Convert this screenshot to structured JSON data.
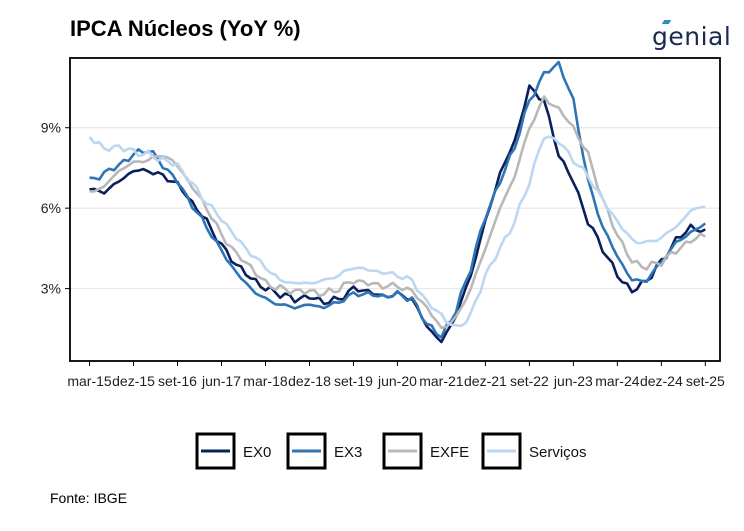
{
  "header": {
    "title": "IPCA Núcleos (YoY %)",
    "brand": "genial"
  },
  "footer": {
    "source": "Fonte: IBGE"
  },
  "chart_data": {
    "type": "line",
    "title": "IPCA Núcleos (YoY %)",
    "xlabel": "",
    "ylabel": "",
    "x_start": "2015-03",
    "x_end": "2025-09",
    "xlim": [
      "2014-11",
      "2025-12"
    ],
    "ylim": [
      0.3,
      11.6
    ],
    "y_ticks": [
      3,
      6,
      9
    ],
    "y_tick_labels": [
      "3%",
      "6%",
      "9%"
    ],
    "x_ticks": [
      "2015-03",
      "2015-12",
      "2016-09",
      "2017-06",
      "2018-03",
      "2018-12",
      "2019-09",
      "2020-06",
      "2021-03",
      "2021-12",
      "2022-09",
      "2023-06",
      "2024-03",
      "2024-12",
      "2025-09"
    ],
    "x_tick_labels": [
      "mar-15",
      "dez-15",
      "set-16",
      "jun-17",
      "mar-18",
      "dez-18",
      "set-19",
      "jun-20",
      "mar-21",
      "dez-21",
      "set-22",
      "jun-23",
      "mar-24",
      "dez-24",
      "set-25"
    ],
    "grid": "horizontal",
    "legend_position": "bottom",
    "series": [
      {
        "name": "EX0",
        "color": "#0b1f5c",
        "keyframes": [
          [
            0,
            6.7
          ],
          [
            3,
            6.6
          ],
          [
            6,
            7.0
          ],
          [
            9,
            7.4
          ],
          [
            12,
            7.4
          ],
          [
            15,
            7.2
          ],
          [
            18,
            6.9
          ],
          [
            21,
            6.2
          ],
          [
            24,
            5.5
          ],
          [
            27,
            4.6
          ],
          [
            30,
            3.9
          ],
          [
            33,
            3.4
          ],
          [
            36,
            3.0
          ],
          [
            39,
            2.8
          ],
          [
            42,
            2.6
          ],
          [
            45,
            2.7
          ],
          [
            48,
            2.5
          ],
          [
            51,
            2.6
          ],
          [
            54,
            3.0
          ],
          [
            57,
            2.9
          ],
          [
            60,
            2.7
          ],
          [
            63,
            2.8
          ],
          [
            66,
            2.6
          ],
          [
            69,
            1.6
          ],
          [
            72,
            1.0
          ],
          [
            75,
            2.0
          ],
          [
            78,
            3.5
          ],
          [
            81,
            5.5
          ],
          [
            84,
            7.3
          ],
          [
            87,
            8.5
          ],
          [
            90,
            10.5
          ],
          [
            93,
            10.0
          ],
          [
            96,
            8.0
          ],
          [
            99,
            7.0
          ],
          [
            102,
            5.5
          ],
          [
            105,
            4.5
          ],
          [
            108,
            3.5
          ],
          [
            111,
            2.9
          ],
          [
            114,
            3.3
          ],
          [
            117,
            4.0
          ],
          [
            120,
            4.8
          ],
          [
            123,
            5.3
          ],
          [
            126,
            5.1
          ]
        ]
      },
      {
        "name": "EX3",
        "color": "#2e75b6",
        "keyframes": [
          [
            0,
            7.0
          ],
          [
            3,
            7.3
          ],
          [
            6,
            7.6
          ],
          [
            9,
            8.0
          ],
          [
            12,
            8.2
          ],
          [
            15,
            7.6
          ],
          [
            18,
            7.0
          ],
          [
            21,
            6.1
          ],
          [
            24,
            5.3
          ],
          [
            27,
            4.4
          ],
          [
            30,
            3.6
          ],
          [
            33,
            3.0
          ],
          [
            36,
            2.6
          ],
          [
            39,
            2.4
          ],
          [
            42,
            2.3
          ],
          [
            45,
            2.4
          ],
          [
            48,
            2.3
          ],
          [
            51,
            2.5
          ],
          [
            54,
            2.8
          ],
          [
            57,
            2.8
          ],
          [
            60,
            2.7
          ],
          [
            63,
            2.8
          ],
          [
            66,
            2.6
          ],
          [
            69,
            1.7
          ],
          [
            72,
            1.2
          ],
          [
            75,
            2.2
          ],
          [
            78,
            3.8
          ],
          [
            81,
            5.7
          ],
          [
            84,
            7.0
          ],
          [
            87,
            8.3
          ],
          [
            90,
            10.0
          ],
          [
            93,
            11.0
          ],
          [
            96,
            11.4
          ],
          [
            99,
            10.0
          ],
          [
            102,
            7.0
          ],
          [
            105,
            5.3
          ],
          [
            108,
            4.2
          ],
          [
            111,
            3.3
          ],
          [
            114,
            3.3
          ],
          [
            117,
            4.0
          ],
          [
            120,
            4.7
          ],
          [
            123,
            5.1
          ],
          [
            126,
            5.4
          ]
        ]
      },
      {
        "name": "EXFE",
        "color": "#b8b8b8",
        "keyframes": [
          [
            0,
            6.6
          ],
          [
            3,
            6.8
          ],
          [
            6,
            7.4
          ],
          [
            9,
            7.7
          ],
          [
            12,
            7.8
          ],
          [
            15,
            8.0
          ],
          [
            18,
            7.6
          ],
          [
            21,
            6.8
          ],
          [
            24,
            6.0
          ],
          [
            27,
            5.0
          ],
          [
            30,
            4.3
          ],
          [
            33,
            3.8
          ],
          [
            36,
            3.2
          ],
          [
            39,
            3.0
          ],
          [
            42,
            2.9
          ],
          [
            45,
            2.9
          ],
          [
            48,
            2.8
          ],
          [
            51,
            3.0
          ],
          [
            54,
            3.3
          ],
          [
            57,
            3.2
          ],
          [
            60,
            3.1
          ],
          [
            63,
            3.1
          ],
          [
            66,
            2.9
          ],
          [
            69,
            2.3
          ],
          [
            72,
            1.5
          ],
          [
            75,
            1.9
          ],
          [
            78,
            3.0
          ],
          [
            81,
            4.5
          ],
          [
            84,
            6.0
          ],
          [
            87,
            7.2
          ],
          [
            90,
            9.0
          ],
          [
            93,
            10.1
          ],
          [
            96,
            9.7
          ],
          [
            99,
            9.0
          ],
          [
            102,
            8.0
          ],
          [
            105,
            6.3
          ],
          [
            108,
            5.0
          ],
          [
            111,
            4.0
          ],
          [
            114,
            3.8
          ],
          [
            117,
            4.0
          ],
          [
            120,
            4.4
          ],
          [
            123,
            4.8
          ],
          [
            126,
            5.0
          ]
        ]
      },
      {
        "name": "Serviços",
        "color": "#bcd7ef",
        "keyframes": [
          [
            0,
            8.7
          ],
          [
            3,
            8.2
          ],
          [
            6,
            8.3
          ],
          [
            9,
            8.1
          ],
          [
            12,
            8.0
          ],
          [
            15,
            7.8
          ],
          [
            18,
            7.6
          ],
          [
            21,
            6.9
          ],
          [
            24,
            6.2
          ],
          [
            27,
            5.6
          ],
          [
            30,
            4.9
          ],
          [
            33,
            4.3
          ],
          [
            36,
            3.8
          ],
          [
            39,
            3.3
          ],
          [
            42,
            3.2
          ],
          [
            45,
            3.2
          ],
          [
            48,
            3.3
          ],
          [
            51,
            3.5
          ],
          [
            54,
            3.8
          ],
          [
            57,
            3.7
          ],
          [
            60,
            3.6
          ],
          [
            63,
            3.5
          ],
          [
            66,
            3.3
          ],
          [
            69,
            2.5
          ],
          [
            72,
            2.0
          ],
          [
            75,
            1.5
          ],
          [
            78,
            2.0
          ],
          [
            81,
            3.5
          ],
          [
            84,
            4.5
          ],
          [
            87,
            5.5
          ],
          [
            90,
            7.0
          ],
          [
            93,
            8.7
          ],
          [
            96,
            8.5
          ],
          [
            99,
            7.8
          ],
          [
            102,
            7.2
          ],
          [
            105,
            6.3
          ],
          [
            108,
            5.5
          ],
          [
            111,
            4.8
          ],
          [
            114,
            4.7
          ],
          [
            117,
            4.9
          ],
          [
            120,
            5.3
          ],
          [
            123,
            5.9
          ],
          [
            126,
            6.1
          ]
        ]
      }
    ]
  }
}
